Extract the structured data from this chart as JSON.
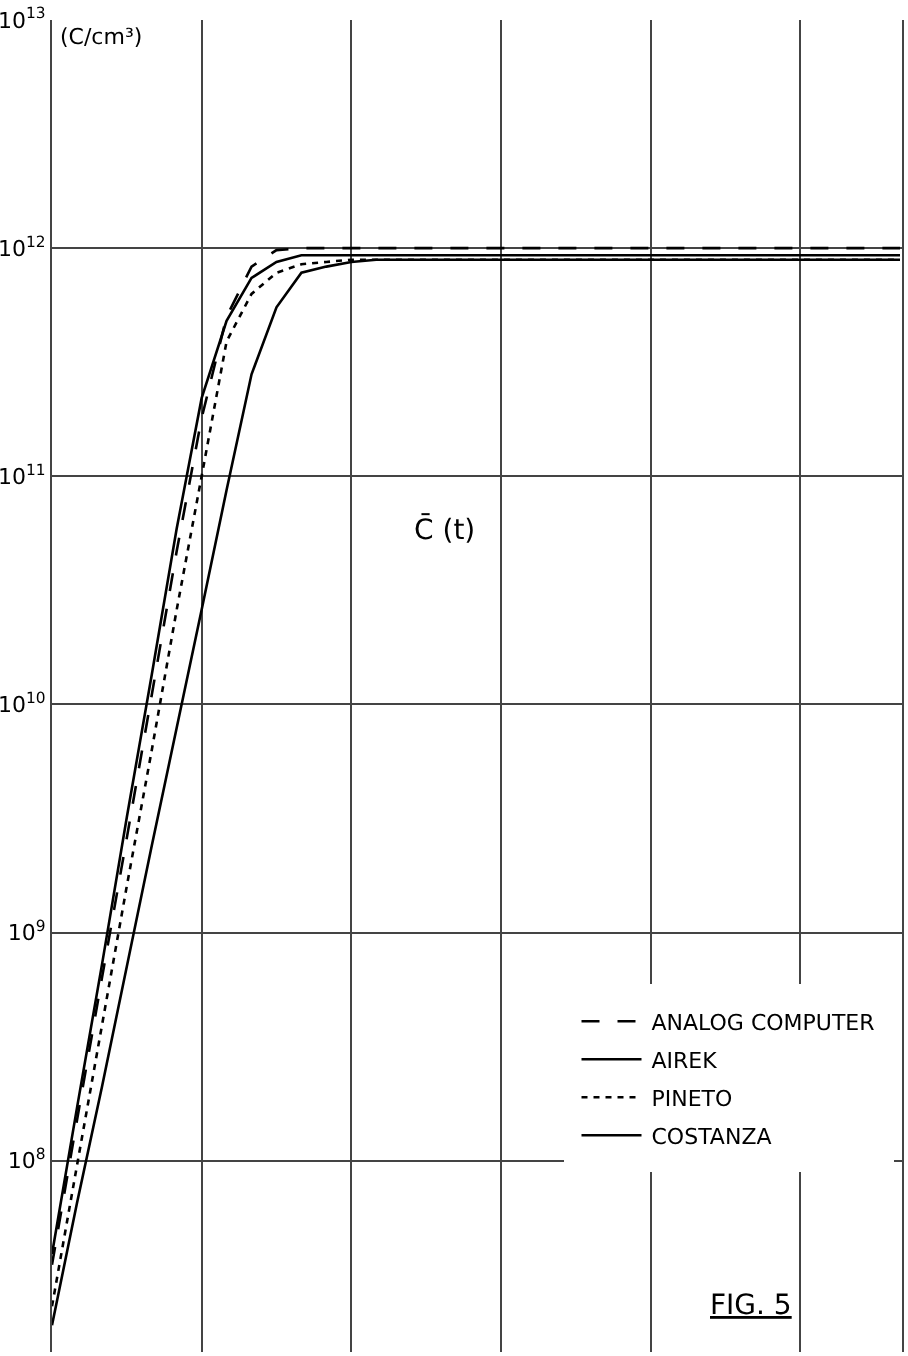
{
  "chart_data": {
    "type": "line",
    "ylabel": "(C/cm³)",
    "categories": [
      null,
      null,
      null,
      null,
      null,
      null,
      null,
      null,
      null,
      null,
      null,
      null,
      null,
      null,
      null,
      null,
      null,
      null,
      null,
      null,
      null,
      null,
      null,
      null,
      null,
      null,
      null,
      null,
      null,
      null,
      null,
      null,
      null,
      null,
      null
    ],
    "series": [
      {
        "name": "ANALOG COMPUTER",
        "color": "#000000",
        "line_style": "dashed",
        "values": [
          35000000.0,
          150000000.0,
          630000000.0,
          2600000000.0,
          11000000000.0,
          47000000000.0,
          180000000000.0,
          500000000000.0,
          830000000000.0,
          980000000000.0,
          1000000000000.0,
          1000000000000.0,
          1000000000000.0,
          1000000000000.0,
          1000000000000.0,
          1000000000000.0,
          1000000000000.0,
          1000000000000.0,
          1000000000000.0,
          1000000000000.0,
          1000000000000.0,
          1000000000000.0,
          1000000000000.0,
          1000000000000.0,
          1000000000000.0,
          1000000000000.0,
          1000000000000.0,
          1000000000000.0,
          1000000000000.0,
          1000000000000.0,
          1000000000000.0,
          1000000000000.0,
          1000000000000.0,
          1000000000000.0,
          1000000000000.0
        ]
      },
      {
        "name": "AIREK",
        "color": "#000000",
        "line_style": "solid",
        "values": [
          39000000.0,
          170000000.0,
          720000000.0,
          3200000000.0,
          13500000000.0,
          59000000000.0,
          220000000000.0,
          480000000000.0,
          740000000000.0,
          870000000000.0,
          930000000000.0,
          930000000000.0,
          930000000000.0,
          930000000000.0,
          930000000000.0,
          930000000000.0,
          930000000000.0,
          930000000000.0,
          930000000000.0,
          930000000000.0,
          930000000000.0,
          930000000000.0,
          930000000000.0,
          930000000000.0,
          930000000000.0,
          930000000000.0,
          930000000000.0,
          930000000000.0,
          930000000000.0,
          930000000000.0,
          930000000000.0,
          930000000000.0,
          930000000000.0,
          930000000000.0,
          930000000000.0
        ]
      },
      {
        "name": "PINETO",
        "color": "#000000",
        "line_style": "dotted",
        "values": [
          23000000.0,
          95000000.0,
          390000000.0,
          1600000000.0,
          6300000000.0,
          26000000000.0,
          100000000000.0,
          390000000000.0,
          630000000000.0,
          780000000000.0,
          850000000000.0,
          870000000000.0,
          890000000000.0,
          890000000000.0,
          890000000000.0,
          890000000000.0,
          890000000000.0,
          890000000000.0,
          890000000000.0,
          890000000000.0,
          890000000000.0,
          890000000000.0,
          890000000000.0,
          890000000000.0,
          890000000000.0,
          890000000000.0,
          890000000000.0,
          890000000000.0,
          890000000000.0,
          890000000000.0,
          890000000000.0,
          890000000000.0,
          890000000000.0,
          890000000000.0,
          890000000000.0
        ]
      },
      {
        "name": "COSTANZA",
        "color": "#000000",
        "line_style": "solid",
        "values": [
          19000000.0,
          65000000.0,
          210000000.0,
          710000000.0,
          2400000000.0,
          7900000000.0,
          26000000000.0,
          87000000000.0,
          280000000000.0,
          550000000000.0,
          780000000000.0,
          830000000000.0,
          870000000000.0,
          890000000000.0,
          890000000000.0,
          890000000000.0,
          890000000000.0,
          890000000000.0,
          890000000000.0,
          890000000000.0,
          890000000000.0,
          890000000000.0,
          890000000000.0,
          890000000000.0,
          890000000000.0,
          890000000000.0,
          890000000000.0,
          890000000000.0,
          890000000000.0,
          890000000000.0,
          890000000000.0,
          890000000000.0,
          890000000000.0,
          890000000000.0,
          890000000000.0
        ]
      }
    ],
    "log": true,
    "ylim": [
      14500000.0,
      10000000000000.0
    ],
    "yticks": [
      {
        "value": 100000000.0,
        "label": "10$^{8}$"
      },
      {
        "value": 1000000000.0,
        "label": "10$^{9}$"
      },
      {
        "value": 10000000000.0,
        "label": "10$^{10}$"
      },
      {
        "value": 100000000000.0,
        "label": "10$^{11}$"
      },
      {
        "value": 1000000000000.0,
        "label": "10$^{12}$"
      },
      {
        "value": 10000000000000.0,
        "label": "10$^{13}$"
      }
    ],
    "grid": true,
    "legend": "bottom right",
    "marker": "none",
    "tick_labels": "y",
    "annotations": [
      "C̄ (t)",
      "FIG. 5"
    ]
  }
}
